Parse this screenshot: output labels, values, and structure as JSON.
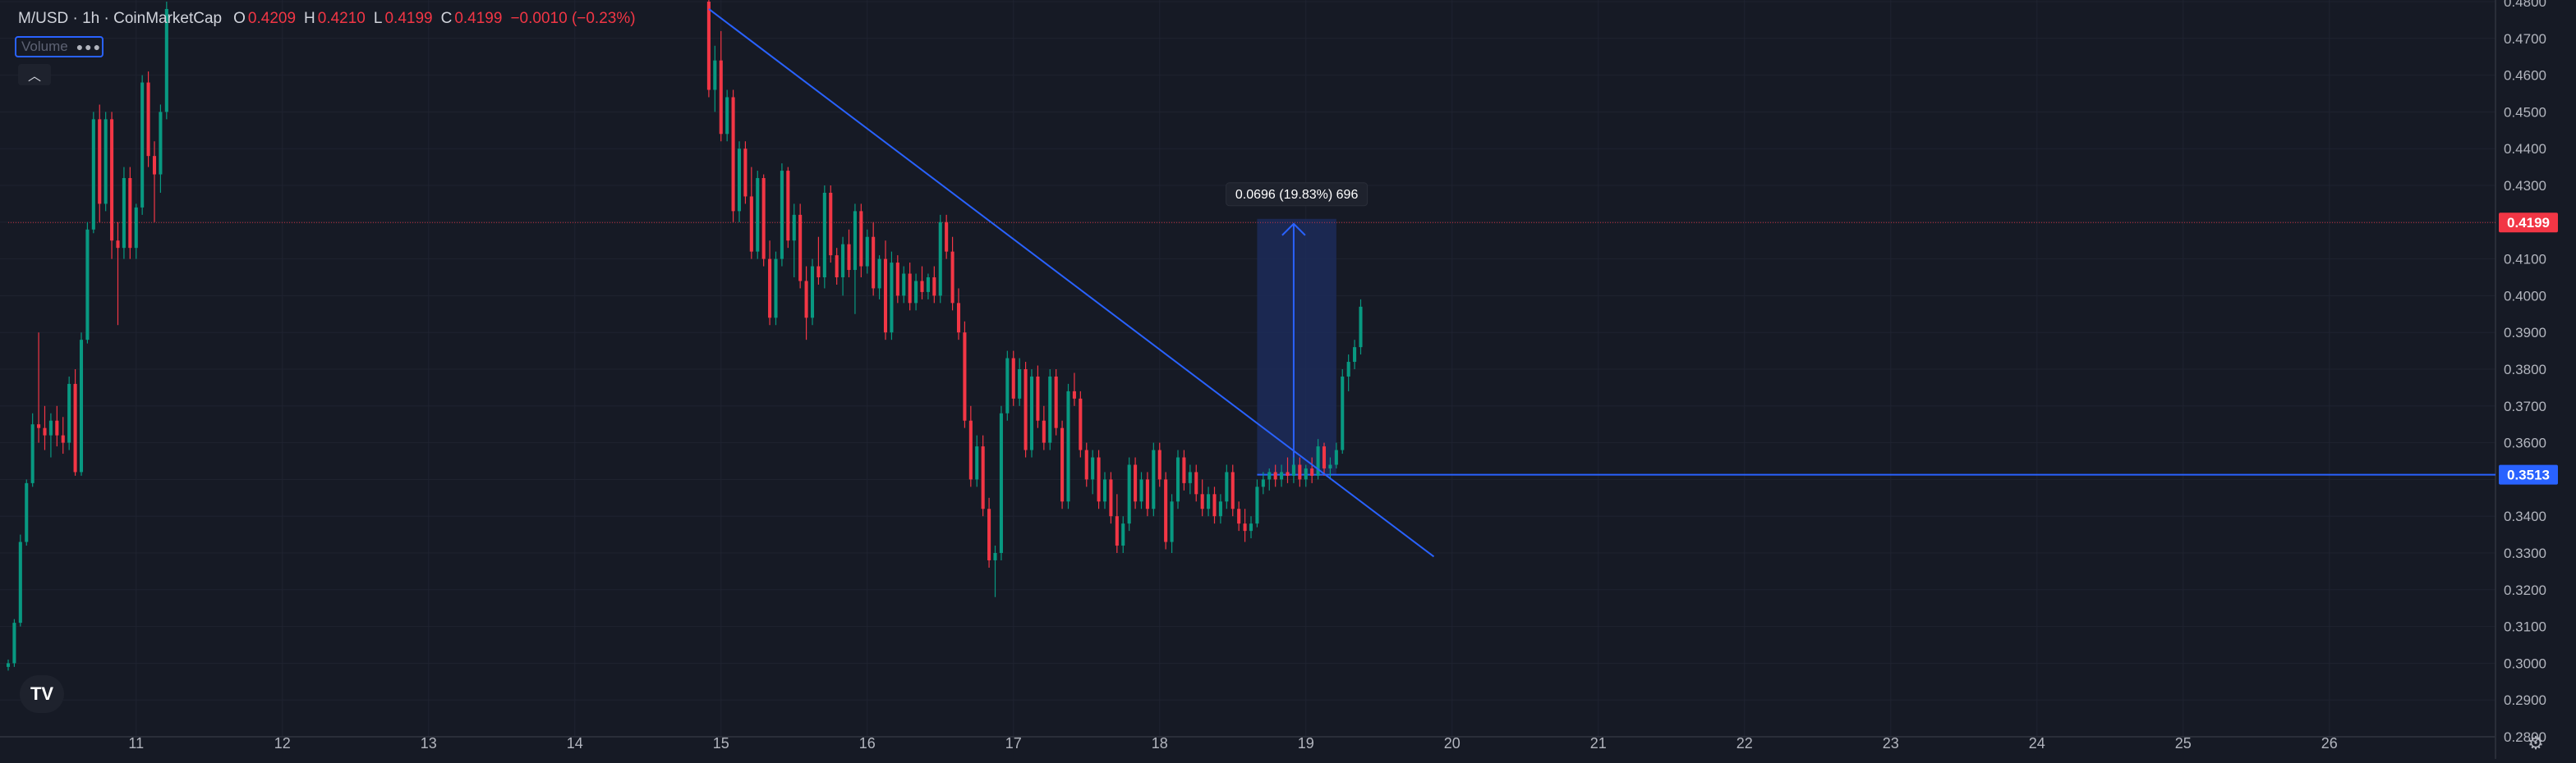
{
  "header": {
    "symbol": "M/USD · 1h · CoinMarketCap",
    "open_label": "O",
    "open": "0.4209",
    "high_label": "H",
    "high": "0.4210",
    "low_label": "L",
    "low": "0.4199",
    "close_label": "C",
    "close": "0.4199",
    "change": "−0.0010 (−0.23%)"
  },
  "volume_badge": {
    "label": "Volume",
    "menu_icon": "more-dots-icon"
  },
  "collapse_icon": "chevron-up-icon",
  "logo": {
    "text": "TV"
  },
  "settings_icon": "gear-icon",
  "chart_data": {
    "type": "candlestick",
    "ylim": [
      0.28,
      0.48
    ],
    "y_ticks": [
      "0.4800",
      "0.4700",
      "0.4600",
      "0.4500",
      "0.4400",
      "0.4300",
      "0.4200",
      "0.4100",
      "0.4000",
      "0.3900",
      "0.3800",
      "0.3700",
      "0.3600",
      "0.3500",
      "0.3400",
      "0.3300",
      "0.3200",
      "0.3100",
      "0.3000",
      "0.2900",
      "0.2800"
    ],
    "x_ticks": [
      {
        "t": 0,
        "label": "11"
      },
      {
        "t": 24,
        "label": "12"
      },
      {
        "t": 48,
        "label": "13"
      },
      {
        "t": 72,
        "label": "14"
      },
      {
        "t": 96,
        "label": "15"
      },
      {
        "t": 120,
        "label": "16"
      },
      {
        "t": 144,
        "label": "17"
      },
      {
        "t": 168,
        "label": "18"
      },
      {
        "t": 192,
        "label": "19"
      },
      {
        "t": 216,
        "label": "20"
      },
      {
        "t": 240,
        "label": "21"
      },
      {
        "t": 264,
        "label": "22"
      },
      {
        "t": 288,
        "label": "23"
      },
      {
        "t": 312,
        "label": "24"
      },
      {
        "t": 336,
        "label": "25"
      },
      {
        "t": 360,
        "label": "26"
      }
    ],
    "x_range": [
      -21,
      387
    ],
    "candles": [
      [
        -21,
        0.299,
        0.301,
        0.298,
        0.3
      ],
      [
        -20,
        0.3,
        0.312,
        0.299,
        0.311
      ],
      [
        -19,
        0.311,
        0.335,
        0.31,
        0.333
      ],
      [
        -18,
        0.333,
        0.35,
        0.332,
        0.349
      ],
      [
        -17,
        0.349,
        0.368,
        0.348,
        0.365
      ],
      [
        -16,
        0.365,
        0.39,
        0.36,
        0.364
      ],
      [
        -15,
        0.364,
        0.37,
        0.358,
        0.362
      ],
      [
        -14,
        0.362,
        0.368,
        0.356,
        0.366
      ],
      [
        -13,
        0.366,
        0.37,
        0.359,
        0.362
      ],
      [
        -12,
        0.362,
        0.367,
        0.357,
        0.36
      ],
      [
        -11,
        0.36,
        0.378,
        0.358,
        0.376
      ],
      [
        -10,
        0.376,
        0.38,
        0.351,
        0.352
      ],
      [
        -9,
        0.352,
        0.39,
        0.351,
        0.388
      ],
      [
        -8,
        0.388,
        0.42,
        0.387,
        0.418
      ],
      [
        -7,
        0.418,
        0.45,
        0.417,
        0.448
      ],
      [
        -6,
        0.448,
        0.452,
        0.42,
        0.425
      ],
      [
        -5,
        0.425,
        0.45,
        0.423,
        0.448
      ],
      [
        -4,
        0.448,
        0.45,
        0.41,
        0.415
      ],
      [
        -3,
        0.415,
        0.42,
        0.392,
        0.413
      ],
      [
        -2,
        0.413,
        0.435,
        0.41,
        0.432
      ],
      [
        -1,
        0.432,
        0.435,
        0.41,
        0.413
      ],
      [
        0,
        0.413,
        0.425,
        0.41,
        0.424
      ],
      [
        1,
        0.424,
        0.46,
        0.422,
        0.458
      ],
      [
        2,
        0.458,
        0.461,
        0.435,
        0.438
      ],
      [
        3,
        0.438,
        0.442,
        0.42,
        0.433
      ],
      [
        4,
        0.433,
        0.452,
        0.428,
        0.45
      ],
      [
        5,
        0.45,
        0.48,
        0.448,
        0.478
      ],
      [
        94,
        0.48,
        0.483,
        0.454,
        0.456
      ],
      [
        95,
        0.456,
        0.468,
        0.45,
        0.464
      ],
      [
        96,
        0.464,
        0.472,
        0.442,
        0.444
      ],
      [
        97,
        0.444,
        0.456,
        0.442,
        0.454
      ],
      [
        98,
        0.454,
        0.456,
        0.42,
        0.423
      ],
      [
        99,
        0.423,
        0.442,
        0.42,
        0.44
      ],
      [
        100,
        0.44,
        0.442,
        0.425,
        0.427
      ],
      [
        101,
        0.427,
        0.435,
        0.41,
        0.412
      ],
      [
        102,
        0.412,
        0.434,
        0.41,
        0.432
      ],
      [
        103,
        0.432,
        0.433,
        0.408,
        0.41
      ],
      [
        104,
        0.41,
        0.415,
        0.392,
        0.394
      ],
      [
        105,
        0.394,
        0.412,
        0.392,
        0.41
      ],
      [
        106,
        0.41,
        0.436,
        0.408,
        0.434
      ],
      [
        107,
        0.434,
        0.435,
        0.413,
        0.415
      ],
      [
        108,
        0.415,
        0.425,
        0.405,
        0.422
      ],
      [
        109,
        0.422,
        0.425,
        0.402,
        0.404
      ],
      [
        110,
        0.404,
        0.408,
        0.388,
        0.394
      ],
      [
        111,
        0.394,
        0.41,
        0.392,
        0.408
      ],
      [
        112,
        0.408,
        0.416,
        0.403,
        0.405
      ],
      [
        113,
        0.405,
        0.43,
        0.402,
        0.428
      ],
      [
        114,
        0.428,
        0.43,
        0.409,
        0.411
      ],
      [
        115,
        0.411,
        0.413,
        0.403,
        0.405
      ],
      [
        116,
        0.405,
        0.416,
        0.4,
        0.414
      ],
      [
        117,
        0.414,
        0.418,
        0.405,
        0.407
      ],
      [
        118,
        0.407,
        0.425,
        0.395,
        0.423
      ],
      [
        119,
        0.423,
        0.425,
        0.405,
        0.408
      ],
      [
        120,
        0.408,
        0.418,
        0.406,
        0.416
      ],
      [
        121,
        0.416,
        0.42,
        0.4,
        0.402
      ],
      [
        122,
        0.402,
        0.411,
        0.399,
        0.41
      ],
      [
        123,
        0.41,
        0.415,
        0.388,
        0.39
      ],
      [
        124,
        0.39,
        0.412,
        0.388,
        0.409
      ],
      [
        125,
        0.409,
        0.411,
        0.398,
        0.4
      ],
      [
        126,
        0.4,
        0.408,
        0.398,
        0.406
      ],
      [
        127,
        0.406,
        0.409,
        0.396,
        0.398
      ],
      [
        128,
        0.398,
        0.406,
        0.396,
        0.404
      ],
      [
        129,
        0.404,
        0.408,
        0.399,
        0.401
      ],
      [
        130,
        0.401,
        0.406,
        0.399,
        0.405
      ],
      [
        131,
        0.405,
        0.408,
        0.398,
        0.4
      ],
      [
        132,
        0.4,
        0.422,
        0.398,
        0.42
      ],
      [
        133,
        0.42,
        0.422,
        0.41,
        0.412
      ],
      [
        134,
        0.412,
        0.416,
        0.396,
        0.398
      ],
      [
        135,
        0.398,
        0.402,
        0.388,
        0.39
      ],
      [
        136,
        0.39,
        0.393,
        0.364,
        0.366
      ],
      [
        137,
        0.366,
        0.37,
        0.348,
        0.35
      ],
      [
        138,
        0.35,
        0.362,
        0.348,
        0.359
      ],
      [
        139,
        0.359,
        0.362,
        0.34,
        0.342
      ],
      [
        140,
        0.342,
        0.345,
        0.326,
        0.328
      ],
      [
        141,
        0.328,
        0.332,
        0.318,
        0.33
      ],
      [
        142,
        0.33,
        0.37,
        0.328,
        0.368
      ],
      [
        143,
        0.368,
        0.385,
        0.366,
        0.383
      ],
      [
        144,
        0.383,
        0.385,
        0.37,
        0.372
      ],
      [
        145,
        0.372,
        0.383,
        0.37,
        0.38
      ],
      [
        146,
        0.38,
        0.382,
        0.356,
        0.358
      ],
      [
        147,
        0.358,
        0.38,
        0.356,
        0.378
      ],
      [
        148,
        0.378,
        0.381,
        0.364,
        0.366
      ],
      [
        149,
        0.366,
        0.37,
        0.358,
        0.36
      ],
      [
        150,
        0.36,
        0.38,
        0.358,
        0.378
      ],
      [
        151,
        0.378,
        0.38,
        0.362,
        0.364
      ],
      [
        152,
        0.364,
        0.366,
        0.342,
        0.344
      ],
      [
        153,
        0.344,
        0.376,
        0.342,
        0.374
      ],
      [
        154,
        0.374,
        0.379,
        0.37,
        0.372
      ],
      [
        155,
        0.372,
        0.374,
        0.356,
        0.358
      ],
      [
        156,
        0.358,
        0.36,
        0.348,
        0.35
      ],
      [
        157,
        0.35,
        0.358,
        0.346,
        0.356
      ],
      [
        158,
        0.356,
        0.358,
        0.342,
        0.344
      ],
      [
        159,
        0.344,
        0.352,
        0.342,
        0.35
      ],
      [
        160,
        0.35,
        0.352,
        0.338,
        0.34
      ],
      [
        161,
        0.34,
        0.346,
        0.33,
        0.332
      ],
      [
        162,
        0.332,
        0.34,
        0.33,
        0.338
      ],
      [
        163,
        0.338,
        0.356,
        0.336,
        0.354
      ],
      [
        164,
        0.354,
        0.356,
        0.342,
        0.344
      ],
      [
        165,
        0.344,
        0.352,
        0.342,
        0.35
      ],
      [
        166,
        0.35,
        0.352,
        0.34,
        0.342
      ],
      [
        167,
        0.342,
        0.36,
        0.34,
        0.358
      ],
      [
        168,
        0.358,
        0.36,
        0.348,
        0.35
      ],
      [
        169,
        0.35,
        0.352,
        0.331,
        0.333
      ],
      [
        170,
        0.333,
        0.346,
        0.33,
        0.344
      ],
      [
        171,
        0.344,
        0.358,
        0.342,
        0.356
      ],
      [
        172,
        0.356,
        0.358,
        0.347,
        0.349
      ],
      [
        173,
        0.349,
        0.354,
        0.346,
        0.352
      ],
      [
        174,
        0.352,
        0.354,
        0.344,
        0.346
      ],
      [
        175,
        0.346,
        0.35,
        0.34,
        0.342
      ],
      [
        176,
        0.342,
        0.348,
        0.34,
        0.346
      ],
      [
        177,
        0.346,
        0.348,
        0.338,
        0.34
      ],
      [
        178,
        0.34,
        0.346,
        0.338,
        0.344
      ],
      [
        179,
        0.344,
        0.354,
        0.342,
        0.352
      ],
      [
        180,
        0.352,
        0.354,
        0.34,
        0.342
      ],
      [
        181,
        0.342,
        0.344,
        0.336,
        0.338
      ],
      [
        182,
        0.338,
        0.342,
        0.333,
        0.336
      ],
      [
        183,
        0.336,
        0.34,
        0.334,
        0.338
      ],
      [
        184,
        0.338,
        0.35,
        0.337,
        0.348
      ],
      [
        185,
        0.348,
        0.352,
        0.346,
        0.35
      ],
      [
        186,
        0.35,
        0.353,
        0.347,
        0.352
      ],
      [
        187,
        0.352,
        0.354,
        0.348,
        0.35
      ],
      [
        188,
        0.35,
        0.354,
        0.348,
        0.352
      ],
      [
        189,
        0.352,
        0.356,
        0.349,
        0.351
      ],
      [
        190,
        0.351,
        0.356,
        0.349,
        0.354
      ],
      [
        191,
        0.354,
        0.356,
        0.348,
        0.35
      ],
      [
        192,
        0.35,
        0.354,
        0.348,
        0.353
      ],
      [
        193,
        0.353,
        0.356,
        0.349,
        0.351
      ],
      [
        194,
        0.351,
        0.361,
        0.35,
        0.359
      ],
      [
        195,
        0.359,
        0.36,
        0.351,
        0.353
      ],
      [
        196,
        0.353,
        0.356,
        0.35,
        0.354
      ],
      [
        197,
        0.354,
        0.36,
        0.353,
        0.358
      ],
      [
        198,
        0.358,
        0.38,
        0.357,
        0.378
      ],
      [
        199,
        0.378,
        0.384,
        0.374,
        0.382
      ],
      [
        200,
        0.382,
        0.388,
        0.38,
        0.386
      ],
      [
        201,
        0.386,
        0.399,
        0.384,
        0.397
      ]
    ],
    "trendline": {
      "t1": 94,
      "p1": 0.478,
      "t2": 213,
      "p2": 0.329
    },
    "measure": {
      "t1": 184,
      "t2": 197,
      "p_low": 0.3513,
      "p_high": 0.4209,
      "arrow_t": 190,
      "label": "0.0696 (19.83%) 696"
    },
    "price_lines": [
      {
        "price": 0.4199,
        "label": "0.4199",
        "color": "#f23645",
        "from_t": -21,
        "dotted": true
      },
      {
        "price": 0.3513,
        "label": "0.3513",
        "color": "#2962ff",
        "from_t": 184,
        "dotted": false
      }
    ],
    "colors": {
      "background": "#161a25",
      "up": "#089981",
      "down": "#f23645",
      "trendline": "#2962ff",
      "grid": "#1f2330",
      "axis_text": "#b2b5be",
      "measure_fill": "#1c2c59"
    }
  }
}
